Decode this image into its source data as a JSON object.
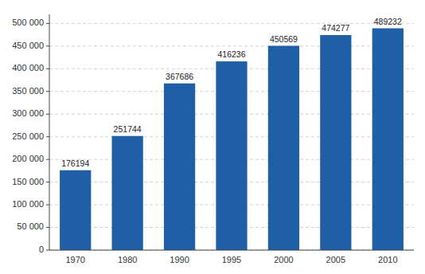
{
  "chart_data": {
    "type": "bar",
    "categories": [
      "1970",
      "1980",
      "1990",
      "1995",
      "2000",
      "2005",
      "2010"
    ],
    "values": [
      176194,
      251744,
      367686,
      416236,
      450569,
      474277,
      489232
    ],
    "color": "#1F5FA6",
    "ylim": [
      0,
      520000
    ],
    "yticks": [
      0,
      {
        "value": 50000,
        "label": "50 000"
      },
      {
        "value": 100000,
        "label": "100 000"
      },
      {
        "value": 150000,
        "label": "150 000"
      },
      {
        "value": 200000,
        "label": "200 000"
      },
      {
        "value": 250000,
        "label": "250 000"
      },
      {
        "value": 300000,
        "label": "300 000"
      },
      {
        "value": 350000,
        "label": "350 000"
      },
      {
        "value": 400000,
        "label": "400 000"
      },
      {
        "value": 450000,
        "label": "450 000"
      },
      {
        "value": 500000,
        "label": "500 000"
      }
    ],
    "grid": true,
    "data_labels": true
  }
}
